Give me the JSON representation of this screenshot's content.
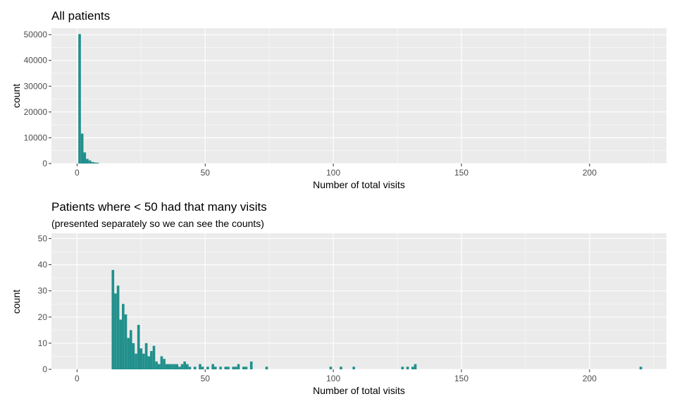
{
  "chart_data": [
    {
      "type": "bar",
      "title": "All patients",
      "subtitle": "",
      "xlabel": "Number of total visits",
      "ylabel": "count",
      "xlim": [
        -10,
        230
      ],
      "ylim": [
        0,
        52500
      ],
      "xticks": [
        0,
        50,
        100,
        150,
        200
      ],
      "yticks": [
        0,
        10000,
        20000,
        30000,
        40000,
        50000
      ],
      "xtick_labels": [
        "0",
        "50",
        "100",
        "150",
        "200"
      ],
      "ytick_labels": [
        "0",
        "10000",
        "20000",
        "30000",
        "40000",
        "50000"
      ],
      "grid": true,
      "bar_color": "#21908c",
      "bin_width": 1,
      "x": [
        1,
        2,
        3,
        4,
        5,
        6,
        7,
        8
      ],
      "values": [
        50200,
        11600,
        4300,
        1800,
        1200,
        600,
        400,
        300
      ]
    },
    {
      "type": "bar",
      "title": "Patients where < 50 had that many visits",
      "subtitle": "(presented separately so we can see the counts)",
      "xlabel": "Number of total visits",
      "ylabel": "count",
      "xlim": [
        -10,
        230
      ],
      "ylim": [
        0,
        52
      ],
      "xticks": [
        0,
        50,
        100,
        150,
        200
      ],
      "yticks": [
        0,
        10,
        20,
        30,
        40,
        50
      ],
      "xtick_labels": [
        "0",
        "50",
        "100",
        "150",
        "200"
      ],
      "ytick_labels": [
        "0",
        "10",
        "20",
        "30",
        "40",
        "50"
      ],
      "grid": true,
      "bar_color": "#21908c",
      "bin_width": 1,
      "x": [
        14,
        15,
        16,
        17,
        18,
        19,
        20,
        21,
        22,
        23,
        24,
        25,
        26,
        27,
        28,
        29,
        30,
        31,
        32,
        33,
        34,
        35,
        36,
        37,
        38,
        39,
        40,
        41,
        42,
        43,
        44,
        46,
        48,
        49,
        51,
        53,
        54,
        56,
        58,
        59,
        61,
        62,
        63,
        65,
        66,
        68,
        74,
        99,
        103,
        108,
        127,
        129,
        131,
        132,
        220
      ],
      "values": [
        38,
        29,
        32,
        19,
        25,
        21,
        12,
        15,
        10,
        6,
        17,
        8,
        6,
        10,
        5,
        7,
        9,
        3,
        2,
        5,
        4,
        2,
        2,
        2,
        2,
        2,
        1,
        2,
        3,
        2,
        1,
        1,
        2,
        1,
        1,
        2,
        1,
        1,
        1,
        1,
        1,
        1,
        2,
        1,
        1,
        3,
        1,
        1,
        1,
        1,
        1,
        1,
        1,
        2,
        1
      ]
    }
  ]
}
